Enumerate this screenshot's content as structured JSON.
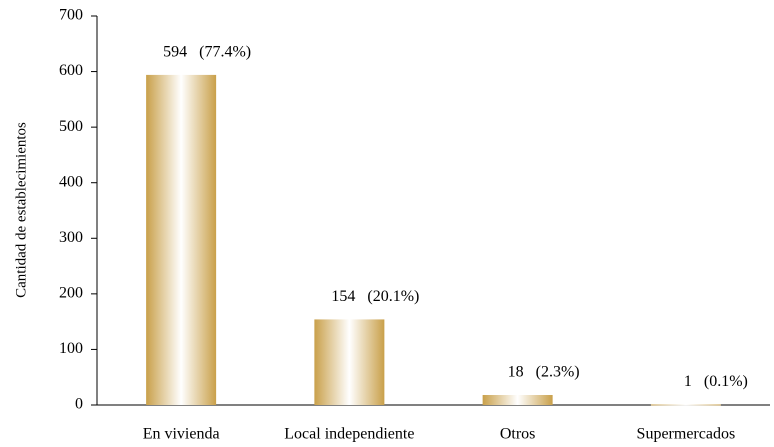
{
  "chart_data": {
    "type": "bar",
    "y_label": "Cantidad de establecimientos",
    "categories": [
      "En vivienda",
      "Local independiente",
      "Otros",
      "Supermercados"
    ],
    "values": [
      594,
      154,
      18,
      1
    ],
    "percentages": [
      77.4,
      20.1,
      2.3,
      0.1
    ],
    "percentage_labels": [
      "(77.4%)",
      "(20.1%)",
      "(2.3%)",
      "(0.1%)"
    ],
    "color": "#c9a04a",
    "ylim": [
      0,
      700
    ],
    "yticks": [
      0,
      100,
      200,
      300,
      400,
      500,
      600,
      700
    ],
    "grid": false
  }
}
